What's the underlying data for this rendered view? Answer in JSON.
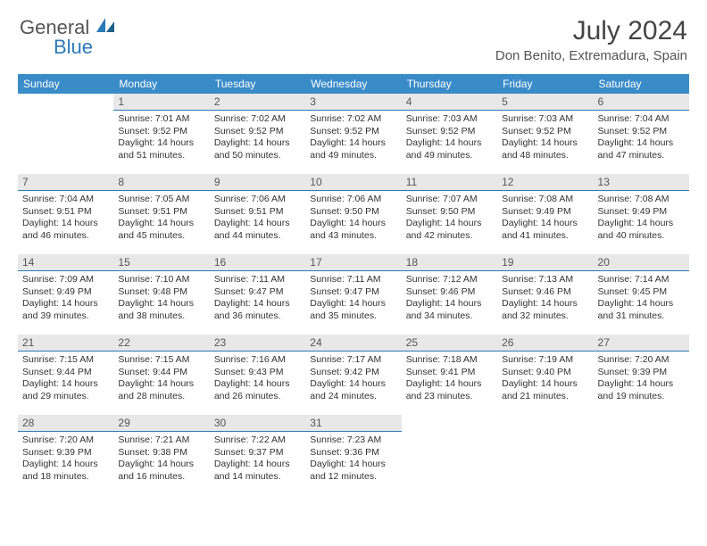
{
  "logo": {
    "text1": "General",
    "text2": "Blue"
  },
  "title": "July 2024",
  "location": "Don Benito, Extremadura, Spain",
  "colors": {
    "header_bg": "#3a8cc9",
    "header_text": "#ffffff",
    "daynum_bg": "#e8e8e8",
    "daynum_border": "#2a7ab8",
    "body_text": "#333333",
    "logo_blue": "#2a7ab8",
    "logo_gray": "#555555"
  },
  "weekdays": [
    "Sunday",
    "Monday",
    "Tuesday",
    "Wednesday",
    "Thursday",
    "Friday",
    "Saturday"
  ],
  "start_offset": 1,
  "days": [
    {
      "n": "1",
      "sunrise": "7:01 AM",
      "sunset": "9:52 PM",
      "daylight": "14 hours and 51 minutes."
    },
    {
      "n": "2",
      "sunrise": "7:02 AM",
      "sunset": "9:52 PM",
      "daylight": "14 hours and 50 minutes."
    },
    {
      "n": "3",
      "sunrise": "7:02 AM",
      "sunset": "9:52 PM",
      "daylight": "14 hours and 49 minutes."
    },
    {
      "n": "4",
      "sunrise": "7:03 AM",
      "sunset": "9:52 PM",
      "daylight": "14 hours and 49 minutes."
    },
    {
      "n": "5",
      "sunrise": "7:03 AM",
      "sunset": "9:52 PM",
      "daylight": "14 hours and 48 minutes."
    },
    {
      "n": "6",
      "sunrise": "7:04 AM",
      "sunset": "9:52 PM",
      "daylight": "14 hours and 47 minutes."
    },
    {
      "n": "7",
      "sunrise": "7:04 AM",
      "sunset": "9:51 PM",
      "daylight": "14 hours and 46 minutes."
    },
    {
      "n": "8",
      "sunrise": "7:05 AM",
      "sunset": "9:51 PM",
      "daylight": "14 hours and 45 minutes."
    },
    {
      "n": "9",
      "sunrise": "7:06 AM",
      "sunset": "9:51 PM",
      "daylight": "14 hours and 44 minutes."
    },
    {
      "n": "10",
      "sunrise": "7:06 AM",
      "sunset": "9:50 PM",
      "daylight": "14 hours and 43 minutes."
    },
    {
      "n": "11",
      "sunrise": "7:07 AM",
      "sunset": "9:50 PM",
      "daylight": "14 hours and 42 minutes."
    },
    {
      "n": "12",
      "sunrise": "7:08 AM",
      "sunset": "9:49 PM",
      "daylight": "14 hours and 41 minutes."
    },
    {
      "n": "13",
      "sunrise": "7:08 AM",
      "sunset": "9:49 PM",
      "daylight": "14 hours and 40 minutes."
    },
    {
      "n": "14",
      "sunrise": "7:09 AM",
      "sunset": "9:49 PM",
      "daylight": "14 hours and 39 minutes."
    },
    {
      "n": "15",
      "sunrise": "7:10 AM",
      "sunset": "9:48 PM",
      "daylight": "14 hours and 38 minutes."
    },
    {
      "n": "16",
      "sunrise": "7:11 AM",
      "sunset": "9:47 PM",
      "daylight": "14 hours and 36 minutes."
    },
    {
      "n": "17",
      "sunrise": "7:11 AM",
      "sunset": "9:47 PM",
      "daylight": "14 hours and 35 minutes."
    },
    {
      "n": "18",
      "sunrise": "7:12 AM",
      "sunset": "9:46 PM",
      "daylight": "14 hours and 34 minutes."
    },
    {
      "n": "19",
      "sunrise": "7:13 AM",
      "sunset": "9:46 PM",
      "daylight": "14 hours and 32 minutes."
    },
    {
      "n": "20",
      "sunrise": "7:14 AM",
      "sunset": "9:45 PM",
      "daylight": "14 hours and 31 minutes."
    },
    {
      "n": "21",
      "sunrise": "7:15 AM",
      "sunset": "9:44 PM",
      "daylight": "14 hours and 29 minutes."
    },
    {
      "n": "22",
      "sunrise": "7:15 AM",
      "sunset": "9:44 PM",
      "daylight": "14 hours and 28 minutes."
    },
    {
      "n": "23",
      "sunrise": "7:16 AM",
      "sunset": "9:43 PM",
      "daylight": "14 hours and 26 minutes."
    },
    {
      "n": "24",
      "sunrise": "7:17 AM",
      "sunset": "9:42 PM",
      "daylight": "14 hours and 24 minutes."
    },
    {
      "n": "25",
      "sunrise": "7:18 AM",
      "sunset": "9:41 PM",
      "daylight": "14 hours and 23 minutes."
    },
    {
      "n": "26",
      "sunrise": "7:19 AM",
      "sunset": "9:40 PM",
      "daylight": "14 hours and 21 minutes."
    },
    {
      "n": "27",
      "sunrise": "7:20 AM",
      "sunset": "9:39 PM",
      "daylight": "14 hours and 19 minutes."
    },
    {
      "n": "28",
      "sunrise": "7:20 AM",
      "sunset": "9:39 PM",
      "daylight": "14 hours and 18 minutes."
    },
    {
      "n": "29",
      "sunrise": "7:21 AM",
      "sunset": "9:38 PM",
      "daylight": "14 hours and 16 minutes."
    },
    {
      "n": "30",
      "sunrise": "7:22 AM",
      "sunset": "9:37 PM",
      "daylight": "14 hours and 14 minutes."
    },
    {
      "n": "31",
      "sunrise": "7:23 AM",
      "sunset": "9:36 PM",
      "daylight": "14 hours and 12 minutes."
    }
  ],
  "labels": {
    "sunrise": "Sunrise:",
    "sunset": "Sunset:",
    "daylight": "Daylight:"
  }
}
